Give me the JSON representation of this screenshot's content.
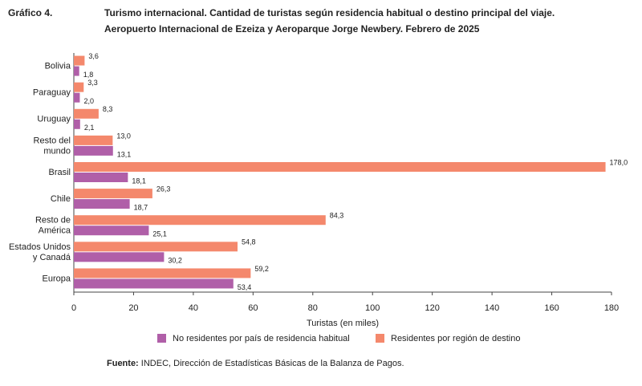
{
  "header": {
    "label": "Gráfico 4."
  },
  "chart_data": {
    "type": "hbar",
    "title": "Turismo internacional. Cantidad de turistas según residencia habitual o destino principal del viaje.",
    "subtitle": "Aeropuerto Internacional de Ezeiza y Aeroparque Jorge Newbery. Febrero de 2025",
    "x_label": "Turistas (en miles)",
    "categories": [
      "Bolivia",
      "Paraguay",
      "Uruguay",
      "Resto del\nmundo",
      "Brasil",
      "Chile",
      "Resto de\nAmérica",
      "Estados Unidos\ny Canadá",
      "Europa"
    ],
    "series": [
      {
        "name": "No residentes por país de residencia habitual",
        "color": "#b05fa8",
        "values": [
          1.8,
          2.0,
          2.1,
          13.1,
          18.1,
          18.7,
          25.1,
          30.2,
          53.4
        ],
        "value_labels": [
          "1,8",
          "2,0",
          "2,1",
          "13,1",
          "18,1",
          "18,7",
          "25,1",
          "30,2",
          "53,4"
        ]
      },
      {
        "name": "Residentes por región de destino",
        "color": "#f4886c",
        "values": [
          3.6,
          3.3,
          8.3,
          13.0,
          178.0,
          26.3,
          84.3,
          54.8,
          59.2
        ],
        "value_labels": [
          "3,6",
          "3,3",
          "8,3",
          "13,0",
          "178,0",
          "26,3",
          "84,3",
          "54,8",
          "59,2"
        ]
      }
    ],
    "xlim": [
      0,
      180
    ],
    "xticks": [
      0,
      20,
      40,
      60,
      80,
      100,
      120,
      140,
      160,
      180
    ],
    "grid": false
  },
  "source": {
    "label": "Fuente:",
    "text": "INDEC, Dirección de Estadísticas Básicas de la Balanza de Pagos."
  }
}
